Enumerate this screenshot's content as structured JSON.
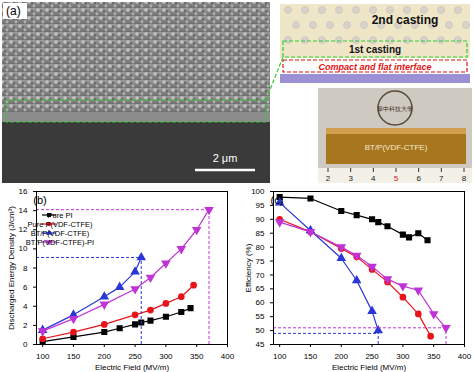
{
  "panel_a": {
    "label": "(a)",
    "scale_bar": "2 μm",
    "schematic": {
      "top_layer": "2nd casting",
      "bottom_layer": "1st casting",
      "interface": "Compact and flat interface"
    },
    "photo": {
      "emblem": "華中科技大學",
      "film": "BT/P(VDF-CTFE)",
      "ruler": [
        "2",
        "3",
        "4",
        "5",
        "6",
        "7",
        "8"
      ]
    }
  },
  "chart_data": [
    {
      "type": "line",
      "panel": "(b)",
      "x_label": "Electric Field (MV/m)",
      "y_label": "Discharged Energy Density (J/cm³)",
      "xlim": [
        90,
        400
      ],
      "xticks": [
        100,
        150,
        200,
        250,
        300,
        350,
        400
      ],
      "ylim": [
        0,
        16
      ],
      "yticks": [
        0,
        2,
        4,
        6,
        8,
        10,
        12,
        14,
        16
      ],
      "legend": "top-left",
      "series": [
        {
          "name": "Pure PI",
          "color": "#000000",
          "marker": "square",
          "line_style": "solid",
          "x": [
            100,
            150,
            200,
            225,
            250,
            260,
            275,
            300,
            325,
            340
          ],
          "values": [
            0.3,
            0.8,
            1.3,
            1.7,
            2.1,
            2.3,
            2.5,
            2.9,
            3.4,
            3.8
          ]
        },
        {
          "name": "Pure P(VDF-CTFE)",
          "color": "#e8141b",
          "marker": "circle",
          "line_style": "solid",
          "x": [
            100,
            150,
            200,
            250,
            275,
            300,
            325,
            345
          ],
          "values": [
            0.6,
            1.3,
            2.1,
            3.1,
            3.6,
            4.3,
            5.0,
            6.2
          ]
        },
        {
          "name": "BT/P(VDF-CTFE)",
          "color": "#2a37d6",
          "marker": "triangle-up",
          "line_style": "solid",
          "x": [
            100,
            150,
            200,
            225,
            250,
            260
          ],
          "values": [
            1.5,
            3.1,
            5.0,
            6.0,
            7.6,
            9.1
          ]
        },
        {
          "name": "BT/P(VDF-CTFE)-PI",
          "color": "#c033d6",
          "marker": "triangle-down",
          "line_style": "solid",
          "x": [
            100,
            150,
            200,
            250,
            275,
            300,
            325,
            350,
            370
          ],
          "values": [
            1.4,
            2.7,
            4.2,
            5.8,
            7.0,
            8.5,
            10.0,
            12.0,
            14.1
          ]
        }
      ],
      "reference_lines": [
        {
          "x": 260,
          "y": 9.1,
          "color": "#2a37d6"
        },
        {
          "x": 370,
          "y": 14.1,
          "color": "#c033d6"
        }
      ]
    },
    {
      "type": "line",
      "panel": "(c)",
      "x_label": "Electric Field (MV/m)",
      "y_label": "Efficiency (%)",
      "xlim": [
        90,
        400
      ],
      "xticks": [
        100,
        150,
        200,
        250,
        300,
        350,
        400
      ],
      "ylim": [
        45,
        100
      ],
      "yticks": [
        45,
        50,
        55,
        60,
        65,
        70,
        75,
        80,
        85,
        90,
        95,
        100
      ],
      "series": [
        {
          "name": "Pure PI",
          "color": "#000000",
          "marker": "square",
          "line_style": "solid",
          "x": [
            100,
            150,
            200,
            225,
            250,
            260,
            275,
            300,
            310,
            325,
            340
          ],
          "values": [
            98,
            97.5,
            93,
            91.5,
            90,
            89,
            87.5,
            84.5,
            83.5,
            85,
            82.5
          ]
        },
        {
          "name": "Pure P(VDF-CTFE)",
          "color": "#e8141b",
          "marker": "circle",
          "line_style": "solid",
          "x": [
            100,
            150,
            200,
            225,
            250,
            275,
            300,
            325,
            345
          ],
          "values": [
            90,
            85.5,
            79.5,
            76.5,
            72,
            67.5,
            62,
            56,
            48
          ]
        },
        {
          "name": "BT/P(VDF-CTFE)",
          "color": "#2a37d6",
          "marker": "triangle-up",
          "line_style": "solid",
          "x": [
            100,
            150,
            200,
            225,
            250,
            260
          ],
          "values": [
            96,
            86,
            76,
            68,
            57,
            50
          ]
        },
        {
          "name": "BT/P(VDF-CTFE)-PI",
          "color": "#c033d6",
          "marker": "triangle-down",
          "line_style": "solid",
          "x": [
            100,
            150,
            200,
            225,
            250,
            275,
            300,
            325,
            350,
            370
          ],
          "values": [
            89,
            85.5,
            80,
            77,
            73,
            68.5,
            66,
            64.5,
            56,
            51
          ]
        }
      ],
      "reference_lines": [
        {
          "x": 260,
          "y": 49,
          "color": "#2a37d6"
        },
        {
          "x": 370,
          "y": 51,
          "color": "#c033d6"
        }
      ]
    }
  ]
}
